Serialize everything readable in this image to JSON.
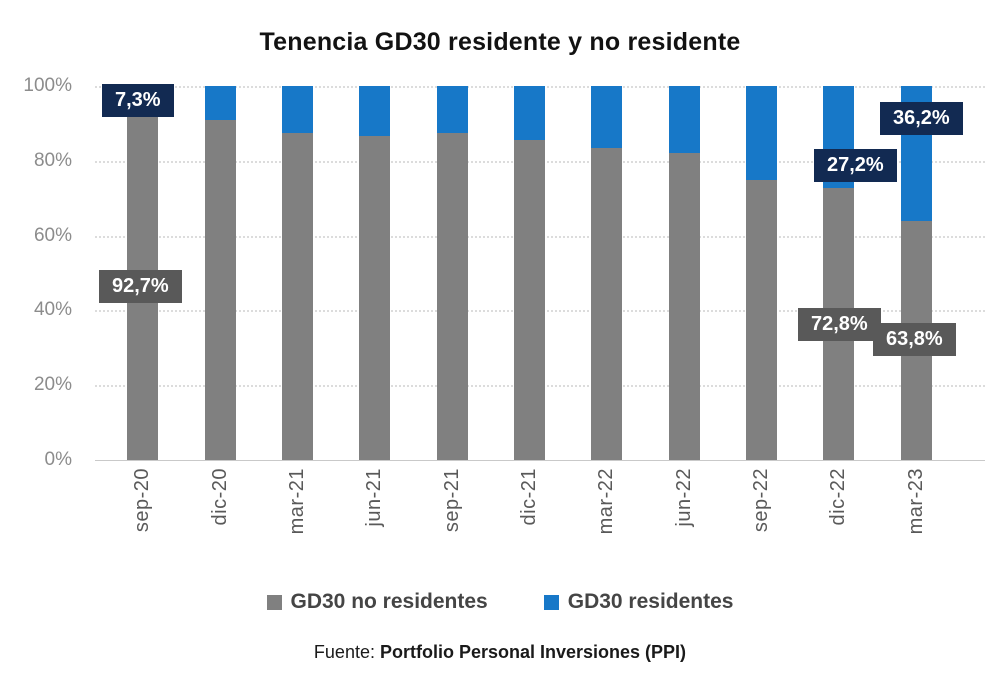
{
  "chart_data": {
    "type": "bar",
    "stacked": true,
    "title": "Tenencia GD30 residente y no residente",
    "xlabel": "",
    "ylabel": "",
    "categories": [
      "sep-20",
      "dic-20",
      "mar-21",
      "jun-21",
      "sep-21",
      "dic-21",
      "mar-22",
      "jun-22",
      "sep-22",
      "dic-22",
      "mar-23"
    ],
    "series": [
      {
        "name": "GD30 no residentes",
        "color": "#808080",
        "values": [
          92.7,
          91.0,
          87.5,
          86.5,
          87.5,
          85.5,
          83.5,
          82.0,
          75.0,
          72.8,
          63.8
        ]
      },
      {
        "name": "GD30 residentes",
        "color": "#1778c8",
        "values": [
          7.3,
          9.0,
          12.5,
          13.5,
          12.5,
          14.5,
          16.5,
          18.0,
          25.0,
          27.2,
          36.2
        ]
      }
    ],
    "ylim": [
      0,
      100
    ],
    "y_ticks": [
      100,
      80,
      60,
      40,
      20,
      0
    ],
    "y_tick_labels": [
      "100%",
      "80%",
      "60%",
      "40%",
      "20%",
      "0%"
    ],
    "grid": "horizontal-dotted",
    "legend_position": "bottom",
    "data_labels": [
      {
        "text": "7,3%",
        "category": "sep-20",
        "series": "GD30 residentes",
        "style": "navy"
      },
      {
        "text": "92,7%",
        "category": "sep-20",
        "series": "GD30 no residentes",
        "style": "gray"
      },
      {
        "text": "27,2%",
        "category": "dic-22",
        "series": "GD30 residentes",
        "style": "navy"
      },
      {
        "text": "36,2%",
        "category": "mar-23",
        "series": "GD30 residentes",
        "style": "navy"
      },
      {
        "text": "72,8%",
        "category": "dic-22",
        "series": "GD30 no residentes",
        "style": "gray"
      },
      {
        "text": "63,8%",
        "category": "mar-23",
        "series": "GD30 no residentes",
        "style": "gray"
      }
    ]
  },
  "colors": {
    "label_navy_bg": "#122a52",
    "label_gray_bg": "#595959",
    "gridline": "#dcdcdc",
    "axis_text": "#8c8c8c"
  },
  "source": {
    "prefix": "Fuente:",
    "name": "Portfolio Personal Inversiones (PPI)"
  }
}
